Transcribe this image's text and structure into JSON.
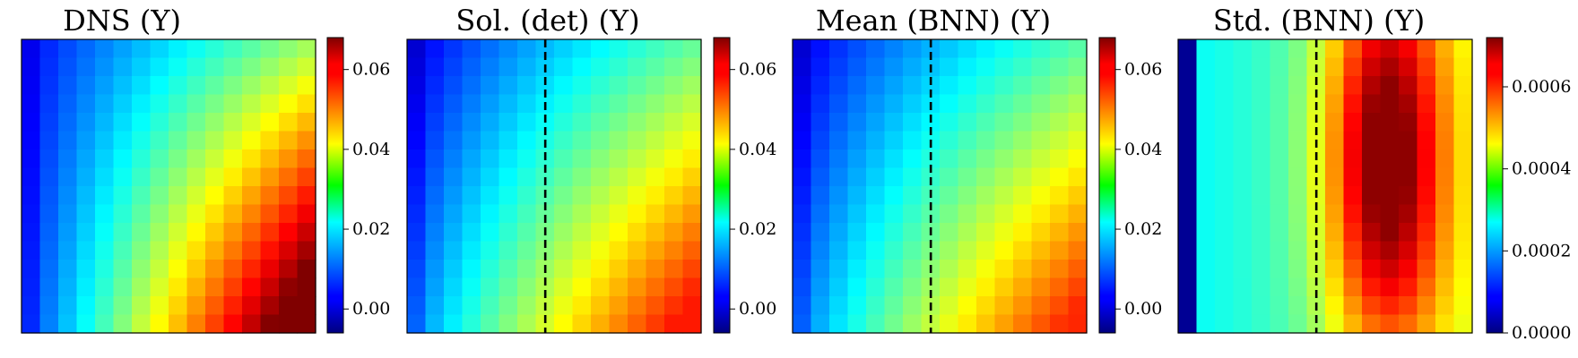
{
  "chart_data": [
    {
      "type": "heatmap",
      "title": "DNS (Y)",
      "grid_size": [
        16,
        16
      ],
      "colormap": "jet",
      "colorbar": {
        "range": [
          -0.006,
          0.068
        ],
        "ticks": [
          0.0,
          0.02,
          0.04,
          0.06
        ],
        "tick_labels": [
          "0.00",
          "0.02",
          "0.04",
          "0.06"
        ]
      },
      "divider_line": null,
      "field": {
        "kind": "dns",
        "min": 0.002,
        "max": 0.068
      }
    },
    {
      "type": "heatmap",
      "title": "Sol. (det) (Y)",
      "grid_size": [
        16,
        16
      ],
      "colormap": "jet",
      "colorbar": {
        "range": [
          -0.006,
          0.068
        ],
        "ticks": [
          0.0,
          0.02,
          0.04,
          0.06
        ],
        "tick_labels": [
          "0.00",
          "0.02",
          "0.04",
          "0.06"
        ]
      },
      "divider_line": {
        "column_fraction": 0.47,
        "style": "dashed"
      },
      "field": {
        "kind": "det",
        "min": 0.0,
        "max": 0.057
      }
    },
    {
      "type": "heatmap",
      "title": "Mean (BNN) (Y)",
      "grid_size": [
        16,
        16
      ],
      "colormap": "jet",
      "colorbar": {
        "range": [
          -0.006,
          0.068
        ],
        "ticks": [
          0.0,
          0.02,
          0.04,
          0.06
        ],
        "tick_labels": [
          "0.00",
          "0.02",
          "0.04",
          "0.06"
        ]
      },
      "divider_line": {
        "column_fraction": 0.47,
        "style": "dashed"
      },
      "field": {
        "kind": "mean",
        "min": 0.0,
        "max": 0.056
      }
    },
    {
      "type": "heatmap",
      "title": "Std. (BNN) (Y)",
      "grid_size": [
        16,
        16
      ],
      "colormap": "jet",
      "colorbar": {
        "range": [
          0.0,
          0.00072
        ],
        "ticks": [
          0.0,
          0.0002,
          0.0004,
          0.0006
        ],
        "tick_labels": [
          "0.0000",
          "0.0002",
          "0.0004",
          "0.0006"
        ]
      },
      "divider_line": {
        "column_fraction": 0.47,
        "style": "dashed"
      },
      "field": {
        "kind": "std",
        "min": 0.0,
        "max": 0.00071
      }
    }
  ]
}
